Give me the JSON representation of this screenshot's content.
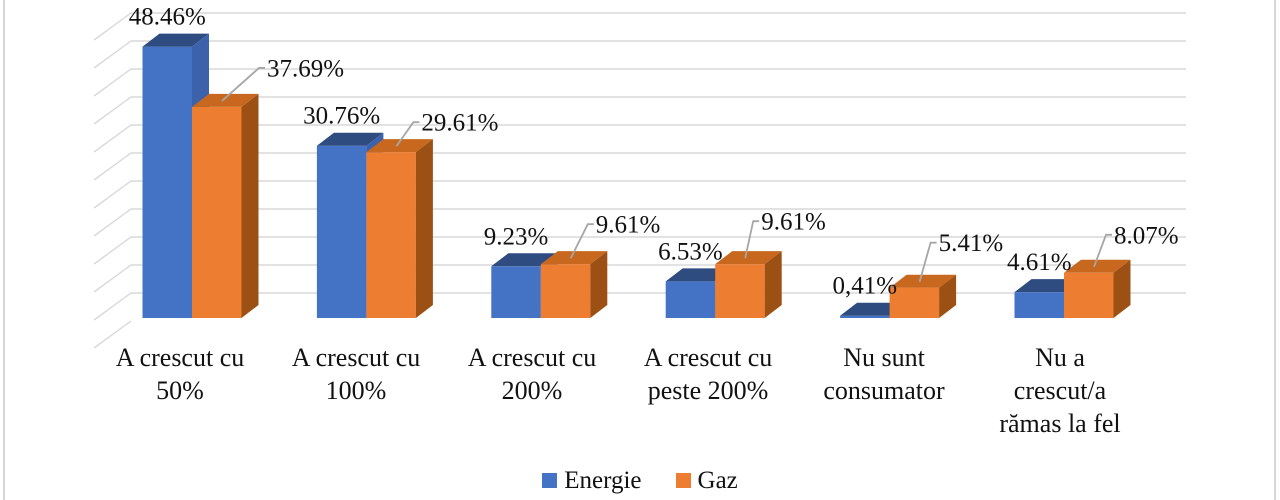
{
  "chart_data": {
    "type": "bar",
    "style": "3d-clustered-column",
    "title": "",
    "xlabel": "",
    "ylabel": "",
    "ylim": [
      0,
      55
    ],
    "gridline_step": 5,
    "grid": true,
    "legend_position": "bottom",
    "categories": [
      "A crescut cu 50%",
      "A crescut cu 100%",
      "A crescut cu 200%",
      "A crescut cu peste 200%",
      "Nu sunt consumator",
      "Nu a crescut/a rămas la fel"
    ],
    "category_lines": [
      [
        "A crescut cu",
        "50%"
      ],
      [
        "A crescut cu",
        "100%"
      ],
      [
        "A crescut cu",
        "200%"
      ],
      [
        "A crescut cu",
        "peste 200%"
      ],
      [
        "Nu sunt",
        "consumator"
      ],
      [
        "Nu a",
        "crescut/a",
        "rămas la fel"
      ]
    ],
    "series": [
      {
        "name": "Energie",
        "color": "#4472C4",
        "color_top": "#2E4C80",
        "color_side": "#3B62AB",
        "values": [
          48.46,
          30.76,
          9.23,
          6.53,
          0.41,
          4.61
        ],
        "labels": [
          "48.46%",
          "30.76%",
          "9.23%",
          "6.53%",
          "0,41%",
          "4.61%"
        ]
      },
      {
        "name": "Gaz",
        "color": "#ED7D31",
        "color_top": "#C8681F",
        "color_side": "#9C5013",
        "values": [
          37.69,
          29.61,
          9.61,
          9.61,
          5.41,
          8.07
        ],
        "labels": [
          "37.69%",
          "29.61%",
          "9.61%",
          "9.61%",
          "5.41%",
          "8.07%"
        ]
      }
    ],
    "colors": {
      "gridline": "#D9D9D9",
      "leader_line": "#A6A6A6",
      "text": "#111111",
      "page_edge_line": "#D6D6D6"
    }
  }
}
